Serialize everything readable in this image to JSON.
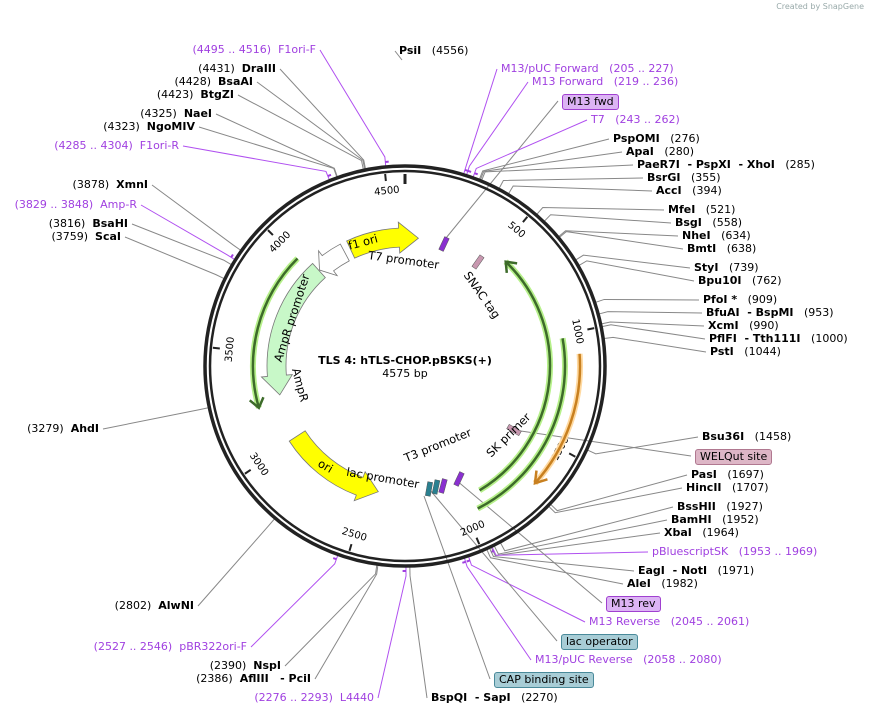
{
  "watermark": "Created by SnapGene",
  "plasmid": {
    "name": "TLS 4: hTLS-CHOP.pBSKS(+)",
    "length_label": "4575 bp",
    "total_bp": 4575
  },
  "colors": {
    "primer": "#a040e0",
    "ring": "#222222",
    "feature_yellow": "#ffff00",
    "ampr": "#c8f8c8",
    "green_line": "#3d6b2a",
    "green_halo": "#b6f08a",
    "orange": "#f0a040"
  },
  "ticks": [
    "500",
    "1000",
    "1500",
    "2000",
    "2500",
    "3000",
    "3500",
    "4000",
    "4500"
  ],
  "labels": [
    {
      "kind": "enzyme",
      "name": "PsiI",
      "pos": "(4556)",
      "bp": 4556
    },
    {
      "kind": "primer",
      "name": "M13/pUC Forward",
      "pos": "(205 .. 227)",
      "bp": 216
    },
    {
      "kind": "primer",
      "name": "M13 Forward",
      "pos": "(219 .. 236)",
      "bp": 227
    },
    {
      "kind": "box",
      "name": "M13 fwd",
      "style": "purple"
    },
    {
      "kind": "primer",
      "name": "T7",
      "pos": "(243 .. 262)",
      "bp": 252
    },
    {
      "kind": "enzyme",
      "name": "PspOMI",
      "pos": "(276)",
      "bp": 276
    },
    {
      "kind": "enzyme",
      "name": "ApaI",
      "pos": "(280)",
      "bp": 280
    },
    {
      "kind": "enzyme",
      "name": "PaeR7I  - PspXI  - XhoI",
      "pos": "(285)",
      "bp": 285
    },
    {
      "kind": "enzyme",
      "name": "BsrGI",
      "pos": "(355)",
      "bp": 355
    },
    {
      "kind": "enzyme",
      "name": "AccI",
      "pos": "(394)",
      "bp": 394
    },
    {
      "kind": "enzyme",
      "name": "MfeI",
      "pos": "(521)",
      "bp": 521
    },
    {
      "kind": "enzyme",
      "name": "BsgI",
      "pos": "(558)",
      "bp": 558
    },
    {
      "kind": "enzyme",
      "name": "NheI",
      "pos": "(634)",
      "bp": 634
    },
    {
      "kind": "enzyme",
      "name": "BmtI",
      "pos": "(638)",
      "bp": 638
    },
    {
      "kind": "enzyme",
      "name": "StyI",
      "pos": "(739)",
      "bp": 739
    },
    {
      "kind": "enzyme",
      "name": "Bpu10I",
      "pos": "(762)",
      "bp": 762
    },
    {
      "kind": "enzyme",
      "name": "PfoI *",
      "pos": "(909)",
      "bp": 909
    },
    {
      "kind": "enzyme",
      "name": "BfuAI  - BspMI",
      "pos": "(953)",
      "bp": 953
    },
    {
      "kind": "enzyme",
      "name": "XcmI",
      "pos": "(990)",
      "bp": 990
    },
    {
      "kind": "enzyme",
      "name": "PflFI  - Tth111I",
      "pos": "(1000)",
      "bp": 1000
    },
    {
      "kind": "enzyme",
      "name": "PstI",
      "pos": "(1044)",
      "bp": 1044
    },
    {
      "kind": "enzyme",
      "name": "Bsu36I",
      "pos": "(1458)",
      "bp": 1458
    },
    {
      "kind": "box",
      "name": "WELQut site",
      "style": "pink"
    },
    {
      "kind": "enzyme",
      "name": "PasI",
      "pos": "(1697)",
      "bp": 1697
    },
    {
      "kind": "enzyme",
      "name": "HincII",
      "pos": "(1707)",
      "bp": 1707
    },
    {
      "kind": "enzyme",
      "name": "BssHII",
      "pos": "(1927)",
      "bp": 1927
    },
    {
      "kind": "enzyme",
      "name": "BamHI",
      "pos": "(1952)",
      "bp": 1952
    },
    {
      "kind": "enzyme",
      "name": "XbaI",
      "pos": "(1964)",
      "bp": 1964
    },
    {
      "kind": "primer",
      "name": "pBluescriptSK",
      "pos": "(1953 .. 1969)",
      "bp": 1961
    },
    {
      "kind": "enzyme",
      "name": "EagI  - NotI",
      "pos": "(1971)",
      "bp": 1971
    },
    {
      "kind": "enzyme",
      "name": "AleI",
      "pos": "(1982)",
      "bp": 1982
    },
    {
      "kind": "box",
      "name": "M13 rev",
      "style": "purple"
    },
    {
      "kind": "primer",
      "name": "M13 Reverse",
      "pos": "(2045 .. 2061)",
      "bp": 2053
    },
    {
      "kind": "box",
      "name": "lac operator",
      "style": "teal"
    },
    {
      "kind": "primer",
      "name": "M13/pUC Reverse",
      "pos": "(2058 .. 2080)",
      "bp": 2069
    },
    {
      "kind": "box",
      "name": "CAP binding site",
      "style": "teal"
    },
    {
      "kind": "enzyme",
      "name": "BspQI  - SapI",
      "pos": "(2270)",
      "bp": 2270
    },
    {
      "kind": "primer",
      "name": "L4440",
      "pos": "(2276 .. 2293)",
      "bp": 2284,
      "side": "left"
    },
    {
      "kind": "enzyme",
      "name": "AflIII   - PciI",
      "pos": "(2386)",
      "bp": 2386,
      "side": "left"
    },
    {
      "kind": "enzyme",
      "name": "NspI",
      "pos": "(2390)",
      "bp": 2390,
      "side": "left"
    },
    {
      "kind": "primer",
      "name": "pBR322ori-F",
      "pos": "(2527 .. 2546)",
      "bp": 2536,
      "side": "left"
    },
    {
      "kind": "enzyme",
      "name": "AlwNI",
      "pos": "(2802)",
      "bp": 2802,
      "side": "left"
    },
    {
      "kind": "enzyme",
      "name": "AhdI",
      "pos": "(3279)",
      "bp": 3279,
      "side": "left"
    },
    {
      "kind": "enzyme",
      "name": "ScaI",
      "pos": "(3759)",
      "bp": 3759,
      "side": "left"
    },
    {
      "kind": "enzyme",
      "name": "BsaHI",
      "pos": "(3816)",
      "bp": 3816,
      "side": "left"
    },
    {
      "kind": "primer",
      "name": "Amp-R",
      "pos": "(3829 .. 3848)",
      "bp": 3838,
      "side": "left"
    },
    {
      "kind": "enzyme",
      "name": "XmnI",
      "pos": "(3878)",
      "bp": 3878,
      "side": "left"
    },
    {
      "kind": "primer",
      "name": "F1ori-R",
      "pos": "(4285 .. 4304)",
      "bp": 4294,
      "side": "left"
    },
    {
      "kind": "enzyme",
      "name": "NgoMIV",
      "pos": "(4323)",
      "bp": 4323,
      "side": "left"
    },
    {
      "kind": "enzyme",
      "name": "NaeI",
      "pos": "(4325)",
      "bp": 4325,
      "side": "left"
    },
    {
      "kind": "enzyme",
      "name": "BtgZI",
      "pos": "(4423)",
      "bp": 4423,
      "side": "left"
    },
    {
      "kind": "enzyme",
      "name": "BsaAI",
      "pos": "(4428)",
      "bp": 4428,
      "side": "left"
    },
    {
      "kind": "enzyme",
      "name": "DraIII",
      "pos": "(4431)",
      "bp": 4431,
      "side": "left"
    },
    {
      "kind": "primer",
      "name": "F1ori-F",
      "pos": "(4495 .. 4516)",
      "bp": 4505,
      "side": "left"
    }
  ],
  "features": [
    {
      "name": "f1 ori",
      "start": 4257,
      "end": 76,
      "dir": 1,
      "type": "block",
      "color": "#ffff00"
    },
    {
      "name": "AmpR promoter",
      "start": 4045,
      "end": 4220,
      "dir": -1,
      "type": "block",
      "color": "#ffffff"
    },
    {
      "name": "AmpR",
      "start": 3266,
      "end": 4041,
      "dir": -1,
      "type": "block",
      "color": "#c8f8c8"
    },
    {
      "name": "ori",
      "start": 2440,
      "end": 3012,
      "dir": -1,
      "type": "block",
      "color": "#ffff00"
    },
    {
      "name": "AmpR CDS line",
      "start": 3228,
      "end": 4003,
      "dir": -1,
      "type": "line",
      "color": "#3d6b2a"
    },
    {
      "name": "insert CDS line",
      "start": 559,
      "end": 1894,
      "dir": -1,
      "type": "line",
      "color": "#3d6b2a"
    },
    {
      "name": "insert CDS line 2",
      "start": 1017,
      "end": 1944,
      "dir": 0,
      "type": "line",
      "color": "#3d6b2a"
    },
    {
      "name": "orange CDS line",
      "start": 1093,
      "end": 1678,
      "dir": 1,
      "type": "line",
      "color": "#f0a040"
    }
  ],
  "feature_labels": [
    "f1 ori",
    "T7 promoter",
    "SNAC tag",
    "AmpR promoter",
    "AmpR",
    "ori",
    "lac promoter",
    "T3 promoter",
    "SK primer"
  ]
}
